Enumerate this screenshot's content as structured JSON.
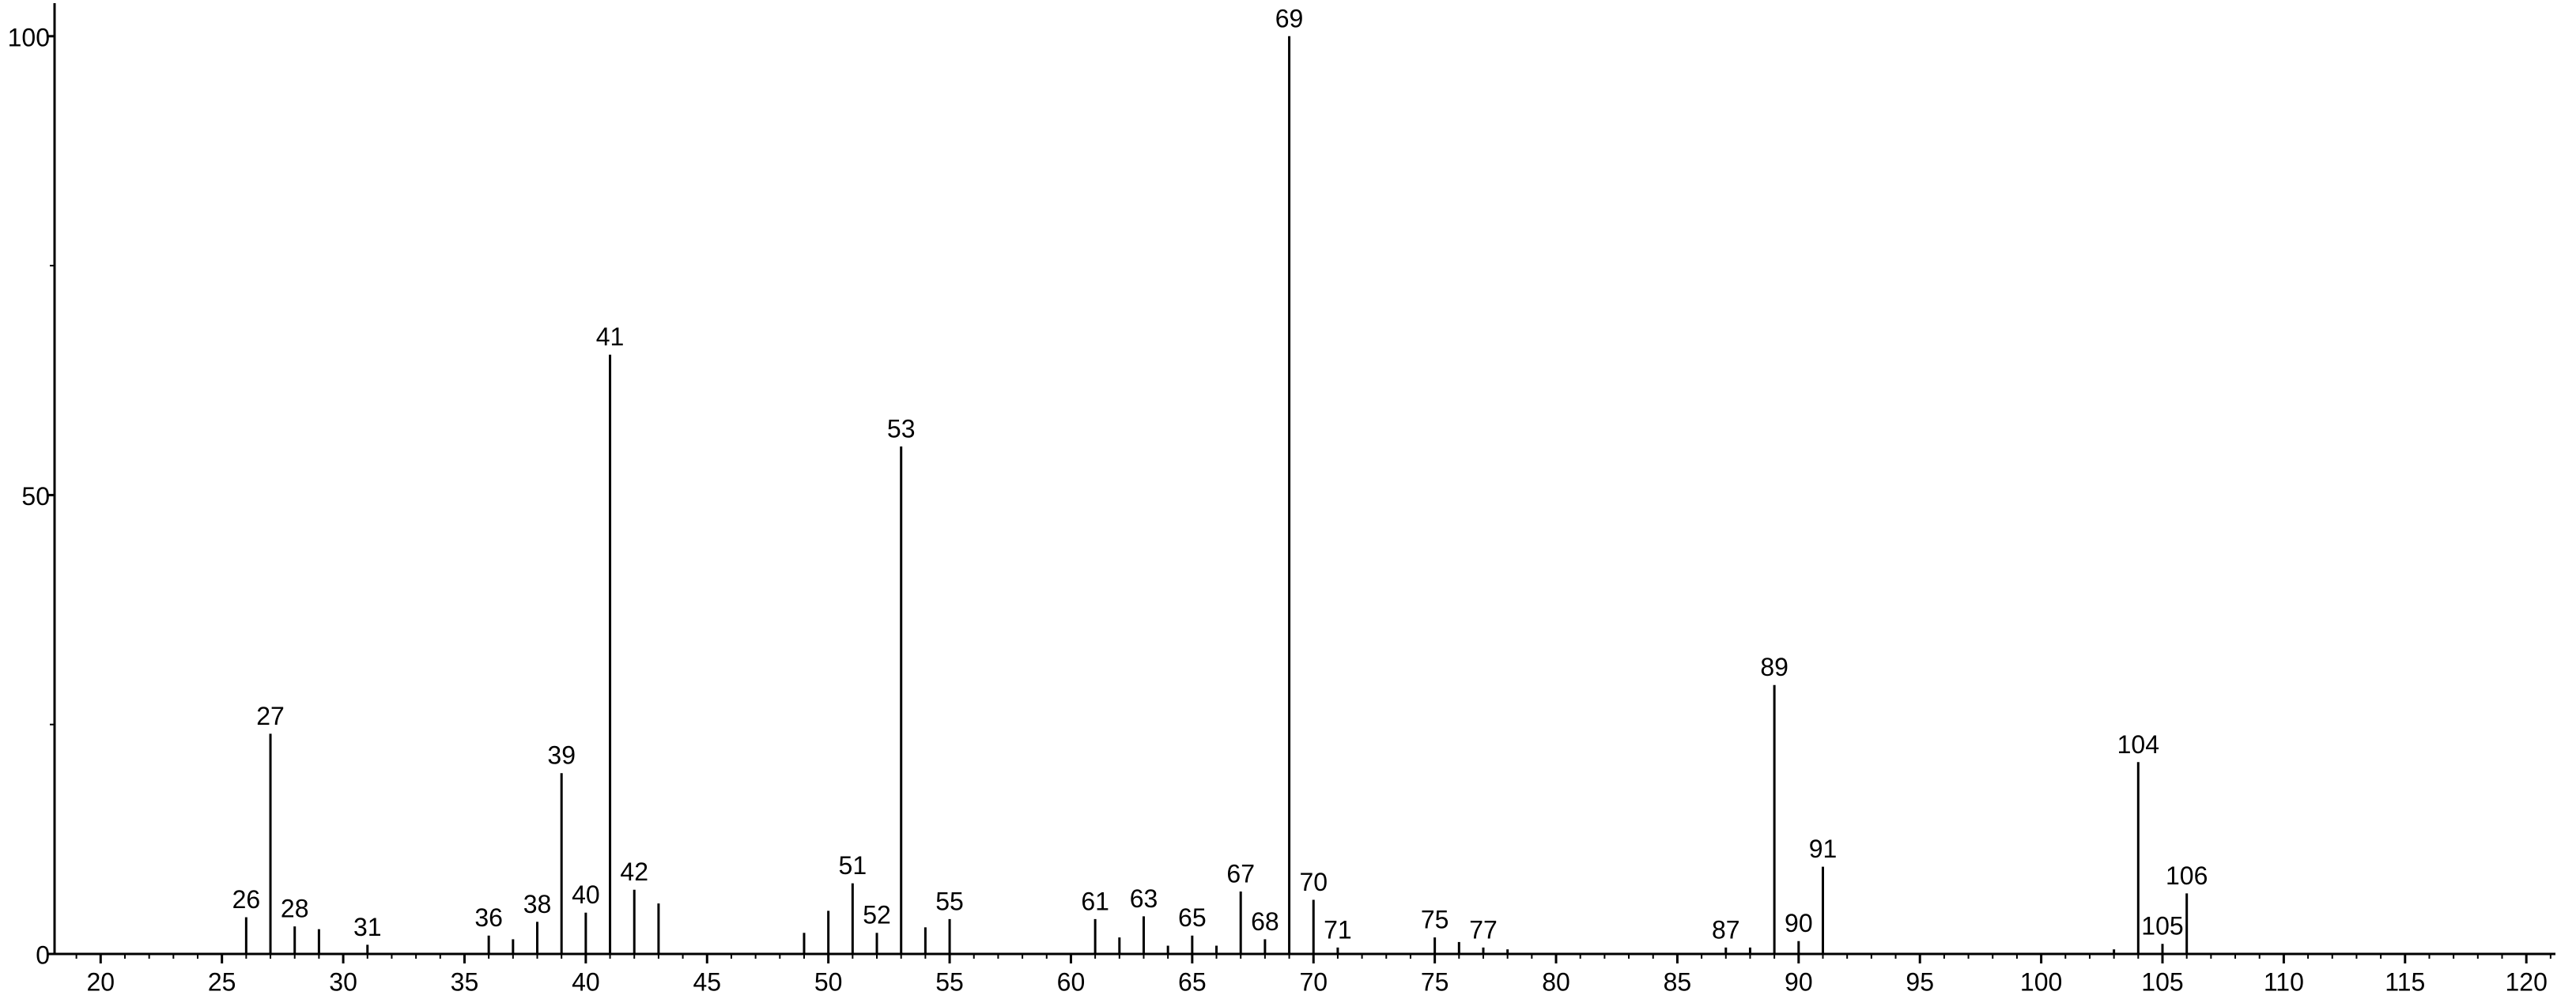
{
  "chart_data": {
    "type": "bar",
    "x": [
      26,
      27,
      28,
      29,
      31,
      36,
      37,
      38,
      39,
      40,
      41,
      42,
      43,
      49,
      50,
      51,
      52,
      53,
      54,
      55,
      61,
      62,
      63,
      64,
      65,
      66,
      67,
      68,
      69,
      70,
      71,
      75,
      76,
      77,
      78,
      87,
      88,
      89,
      90,
      91,
      103,
      104,
      105,
      106
    ],
    "values": [
      4,
      24,
      3,
      2.7,
      1,
      2,
      1.6,
      3.5,
      19.7,
      4.5,
      65.3,
      7,
      5.5,
      2.3,
      4.7,
      7.7,
      2.3,
      55.3,
      2.9,
      3.8,
      3.8,
      1.8,
      4.1,
      0.9,
      2,
      0.9,
      6.8,
      1.6,
      100,
      5.9,
      0.7,
      1.8,
      1.3,
      0.7,
      0.5,
      0.7,
      0.7,
      29.3,
      1.4,
      9.5,
      0.5,
      20.9,
      1.1,
      6.6
    ],
    "labels": [
      "26",
      "27",
      "28",
      null,
      "31",
      "36",
      null,
      "38",
      "39",
      "40",
      "41",
      "42",
      null,
      null,
      null,
      "51",
      "52",
      "53",
      null,
      "55",
      "61",
      null,
      "63",
      null,
      "65",
      null,
      "67",
      "68",
      "69",
      "70",
      "71",
      "75",
      null,
      "77",
      null,
      "87",
      null,
      "89",
      "90",
      "91",
      null,
      "104",
      "105",
      "106"
    ],
    "color": "#000000",
    "xlim": [
      18.1,
      121.2
    ],
    "xticks": [
      20,
      25,
      30,
      35,
      40,
      45,
      50,
      55,
      60,
      65,
      70,
      75,
      80,
      85,
      90,
      95,
      100,
      105,
      110,
      115,
      120
    ],
    "x_minor_tick_step": 1,
    "ylim": [
      0,
      103.6
    ],
    "yticks": [
      0,
      50,
      100
    ],
    "y_minor_ticks": [
      25,
      75
    ]
  }
}
